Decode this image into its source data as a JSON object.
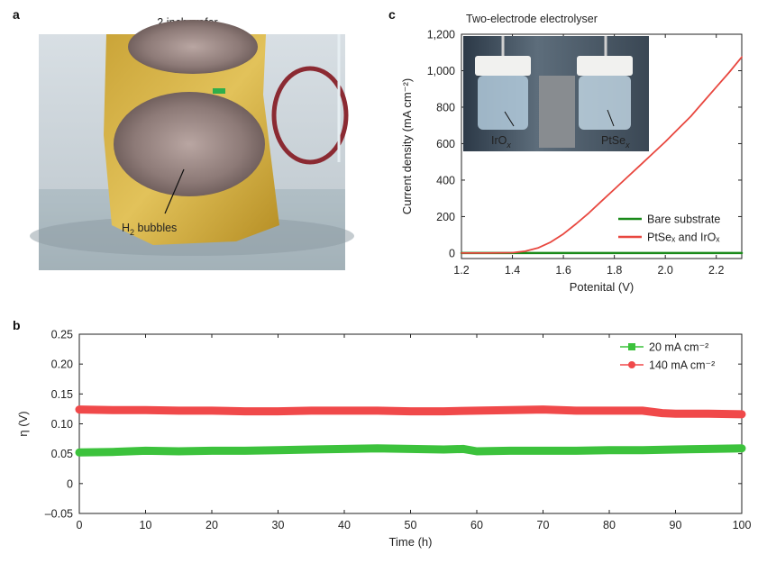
{
  "panels": {
    "a": {
      "letter": "a",
      "title": "2 inch wafer",
      "annotation_main": "H",
      "annotation_sub": "2",
      "annotation_tail": " bubbles"
    },
    "b": {
      "letter": "b"
    },
    "c": {
      "letter": "c",
      "title": "Two-electrode electrolyser",
      "inset_left_main": "IrO",
      "inset_left_sub": "x",
      "inset_right_main": "PtSe",
      "inset_right_sub": "x"
    }
  },
  "chart_data": [
    {
      "id": "c",
      "type": "line",
      "title": "Two-electrode electrolyser",
      "xlabel": "Potenital (V)",
      "ylabel": "Current density (mA cm⁻²)",
      "xlim": [
        1.2,
        2.3
      ],
      "ylim": [
        -30,
        1200
      ],
      "xticks": [
        "1.2",
        "1.4",
        "1.6",
        "1.8",
        "2.0",
        "2.2"
      ],
      "xtick_values": [
        1.2,
        1.4,
        1.6,
        1.8,
        2.0,
        2.2
      ],
      "yticks": [
        "0",
        "200",
        "400",
        "600",
        "800",
        "1,000",
        "1,200"
      ],
      "ytick_values": [
        0,
        200,
        400,
        600,
        800,
        1000,
        1200
      ],
      "legend_position": "bottom-right",
      "series": [
        {
          "name": "Bare substrate",
          "color": "#1a8a1a",
          "x": [
            1.2,
            1.4,
            1.6,
            1.8,
            2.0,
            2.2,
            2.3
          ],
          "y": [
            0,
            0,
            0,
            0,
            0,
            0,
            0
          ]
        },
        {
          "name": "PtSeₓ and IrOₓ",
          "color": "#e8473f",
          "x": [
            1.2,
            1.3,
            1.4,
            1.45,
            1.5,
            1.55,
            1.6,
            1.65,
            1.7,
            1.75,
            1.8,
            1.85,
            1.9,
            1.95,
            2.0,
            2.05,
            2.1,
            2.15,
            2.2,
            2.25,
            2.3
          ],
          "y": [
            0,
            0,
            2,
            10,
            28,
            60,
            105,
            160,
            220,
            285,
            350,
            415,
            480,
            545,
            610,
            680,
            750,
            830,
            910,
            990,
            1075
          ]
        }
      ]
    },
    {
      "id": "b",
      "type": "line",
      "xlabel": "Time (h)",
      "ylabel": "η (V)",
      "xlim": [
        0,
        100
      ],
      "ylim": [
        -0.05,
        0.25
      ],
      "xticks": [
        "0",
        "10",
        "20",
        "30",
        "40",
        "50",
        "60",
        "70",
        "80",
        "90",
        "100"
      ],
      "xtick_values": [
        0,
        10,
        20,
        30,
        40,
        50,
        60,
        70,
        80,
        90,
        100
      ],
      "yticks": [
        "–0.05",
        "0",
        "0.05",
        "0.10",
        "0.15",
        "0.20",
        "0.25"
      ],
      "ytick_values": [
        -0.05,
        0,
        0.05,
        0.1,
        0.15,
        0.2,
        0.25
      ],
      "legend_position": "top-right",
      "series": [
        {
          "name": "20 mA cm⁻²",
          "color": "#3cc23c",
          "x": [
            0,
            5,
            10,
            15,
            20,
            25,
            30,
            35,
            40,
            45,
            50,
            55,
            58,
            60,
            65,
            70,
            75,
            80,
            85,
            90,
            95,
            100
          ],
          "y": [
            0.052,
            0.053,
            0.055,
            0.054,
            0.055,
            0.055,
            0.056,
            0.057,
            0.058,
            0.059,
            0.058,
            0.057,
            0.058,
            0.054,
            0.055,
            0.055,
            0.055,
            0.056,
            0.056,
            0.057,
            0.058,
            0.059
          ]
        },
        {
          "name": "140 mA cm⁻²",
          "color": "#f0494a",
          "x": [
            0,
            5,
            10,
            15,
            20,
            25,
            30,
            35,
            40,
            45,
            50,
            55,
            60,
            65,
            70,
            75,
            80,
            85,
            88,
            90,
            95,
            100
          ],
          "y": [
            0.124,
            0.123,
            0.123,
            0.122,
            0.122,
            0.121,
            0.121,
            0.122,
            0.122,
            0.122,
            0.121,
            0.121,
            0.122,
            0.123,
            0.124,
            0.122,
            0.122,
            0.122,
            0.118,
            0.117,
            0.117,
            0.116
          ]
        }
      ]
    }
  ]
}
